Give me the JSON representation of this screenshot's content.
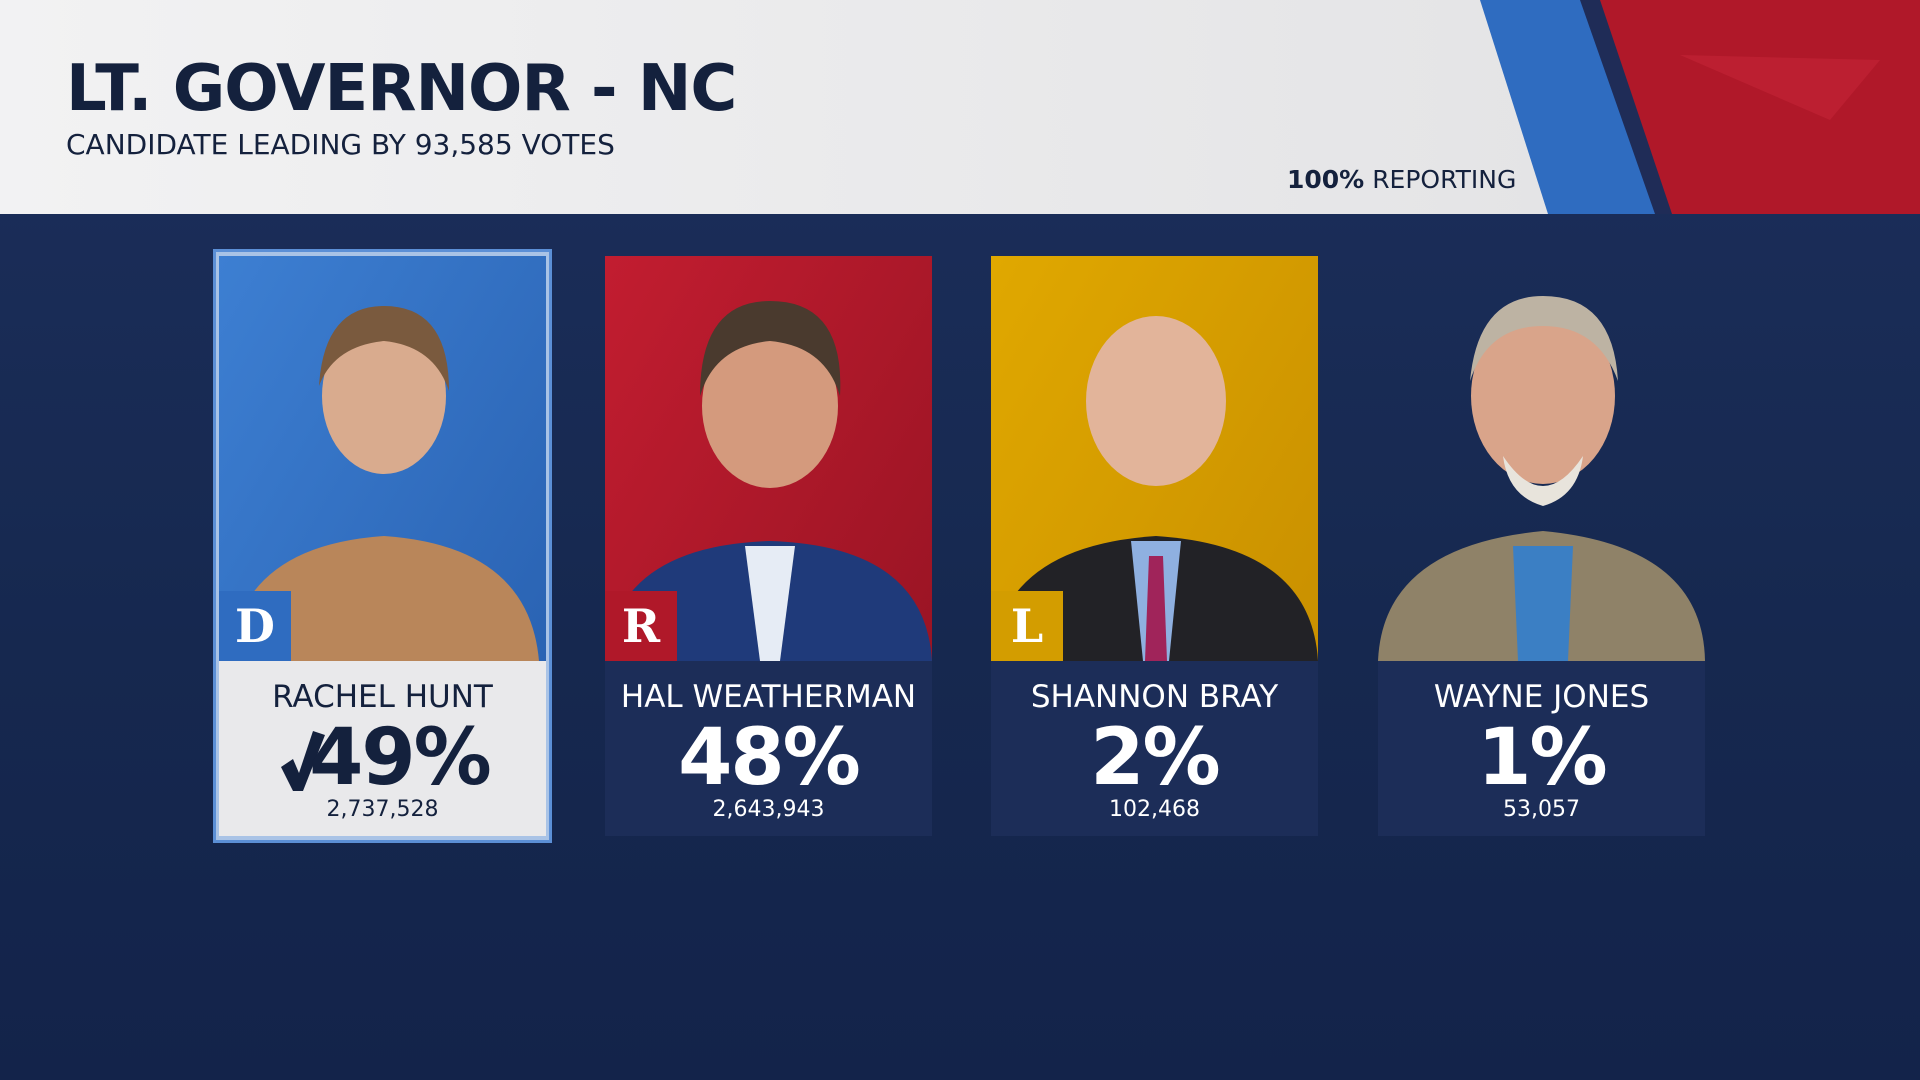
{
  "header": {
    "title": "LT. GOVERNOR - NC",
    "subtitle": "CANDIDATE LEADING BY 93,585 VOTES",
    "reporting": {
      "percent": "100%",
      "label": "REPORTING"
    }
  },
  "candidates": [
    {
      "party": "D",
      "name": "RACHEL HUNT",
      "percent": "49%",
      "votes": "2,737,528"
    },
    {
      "party": "R",
      "name": "HAL WEATHERMAN",
      "percent": "48%",
      "votes": "2,643,943"
    },
    {
      "party": "L",
      "name": "SHANNON BRAY",
      "percent": "2%",
      "votes": "102,468"
    },
    {
      "party": "",
      "name": "WAYNE JONES",
      "percent": "1%",
      "votes": "53,057"
    }
  ]
}
